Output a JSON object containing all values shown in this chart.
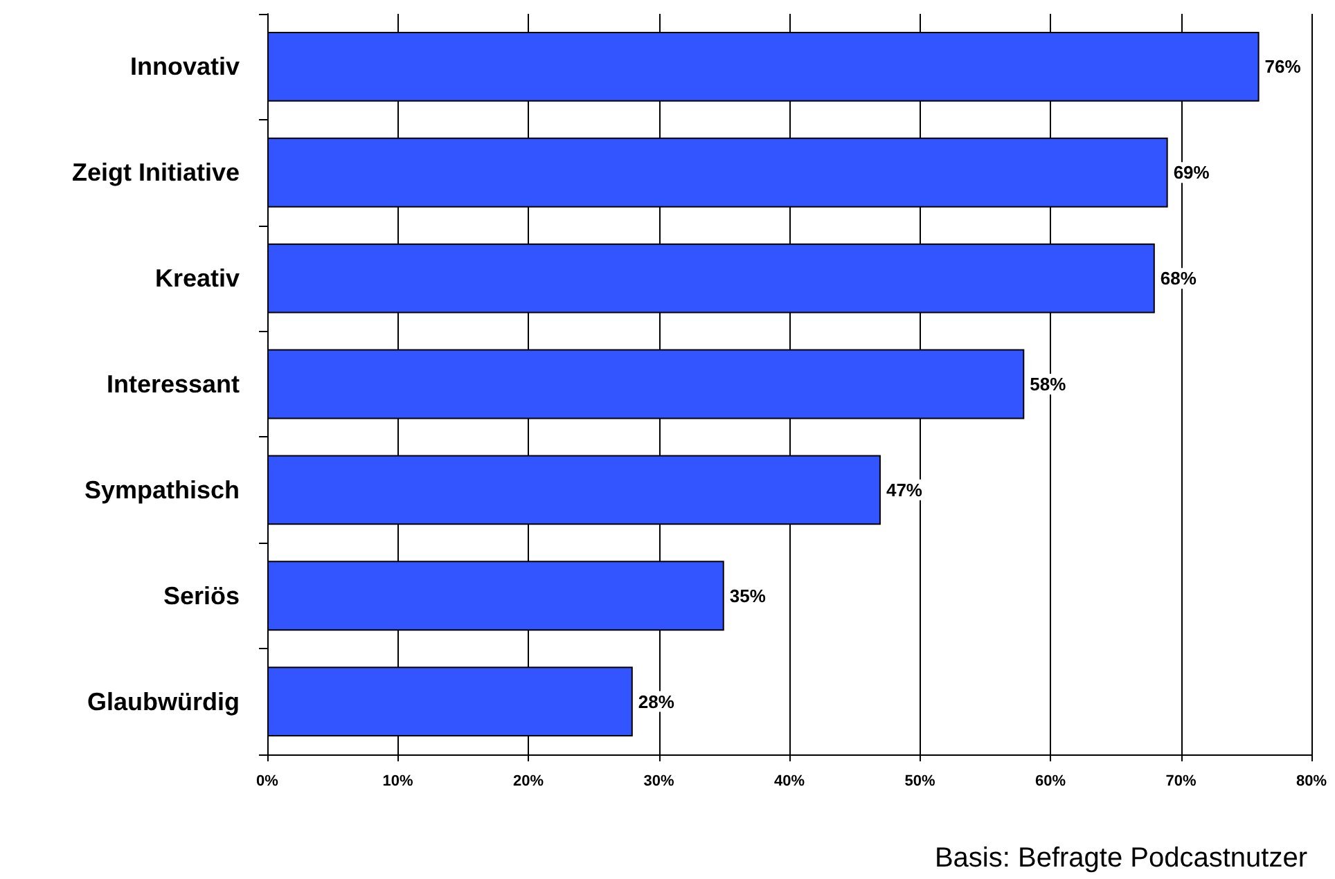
{
  "chart_data": {
    "type": "bar",
    "orientation": "horizontal",
    "categories": [
      "Innovativ",
      "Zeigt Initiative",
      "Kreativ",
      "Interessant",
      "Sympathisch",
      "Seriös",
      "Glaubwürdig"
    ],
    "values": [
      76,
      69,
      68,
      58,
      47,
      35,
      28
    ],
    "value_labels": [
      "76%",
      "69%",
      "68%",
      "58%",
      "47%",
      "35%",
      "28%"
    ],
    "color": "#3355ff",
    "xlim": [
      0,
      80
    ],
    "xticks": [
      {
        "value": 0,
        "label": "0%"
      },
      {
        "value": 10,
        "label": "10%"
      },
      {
        "value": 20,
        "label": "20%"
      },
      {
        "value": 30,
        "label": "30%"
      },
      {
        "value": 40,
        "label": "40%"
      },
      {
        "value": 50,
        "label": "50%"
      },
      {
        "value": 60,
        "label": "60%"
      },
      {
        "value": 70,
        "label": "70%"
      },
      {
        "value": 80,
        "label": "80%"
      }
    ],
    "grid": "x",
    "annotations": [
      "Basis: Befragte Podcastnutzer"
    ]
  }
}
